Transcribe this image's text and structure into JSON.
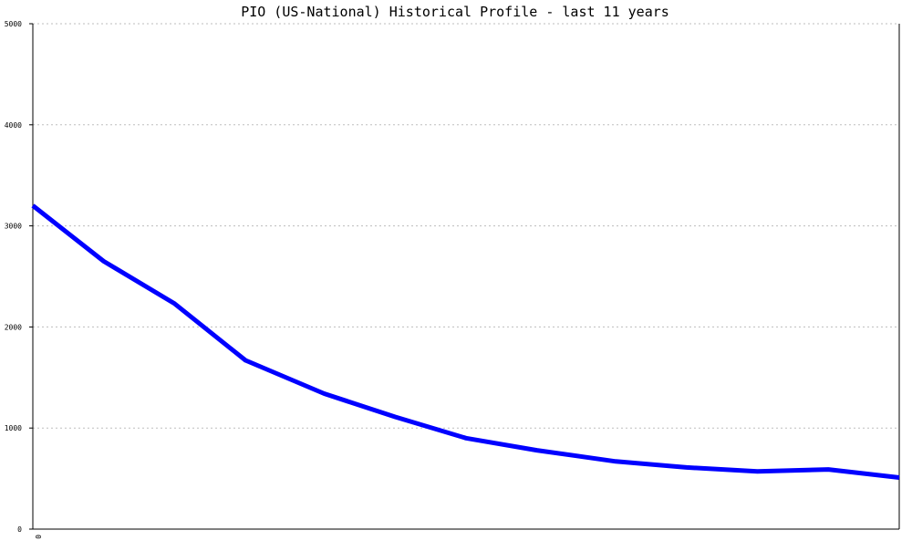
{
  "chart_data": {
    "type": "line",
    "title": "PIO (US-National) Historical Profile - last 11 years",
    "xlabel": "",
    "ylabel": "",
    "ylim": [
      0,
      5000
    ],
    "y_ticks": [
      "0",
      "1000",
      "2000",
      "3000",
      "4000",
      "5000"
    ],
    "x_ticks": [
      "0"
    ],
    "x_range": [
      0,
      11
    ],
    "grid": true,
    "series": [
      {
        "color": "#0000ff",
        "x": [
          0,
          0.9,
          1.8,
          2.7,
          3.7,
          4.6,
          5.5,
          6.4,
          7.4,
          8.3,
          9.2,
          10.1,
          11
        ],
        "values": [
          3200,
          2650,
          2230,
          1670,
          1340,
          1110,
          900,
          780,
          670,
          610,
          570,
          590,
          510
        ]
      }
    ]
  }
}
